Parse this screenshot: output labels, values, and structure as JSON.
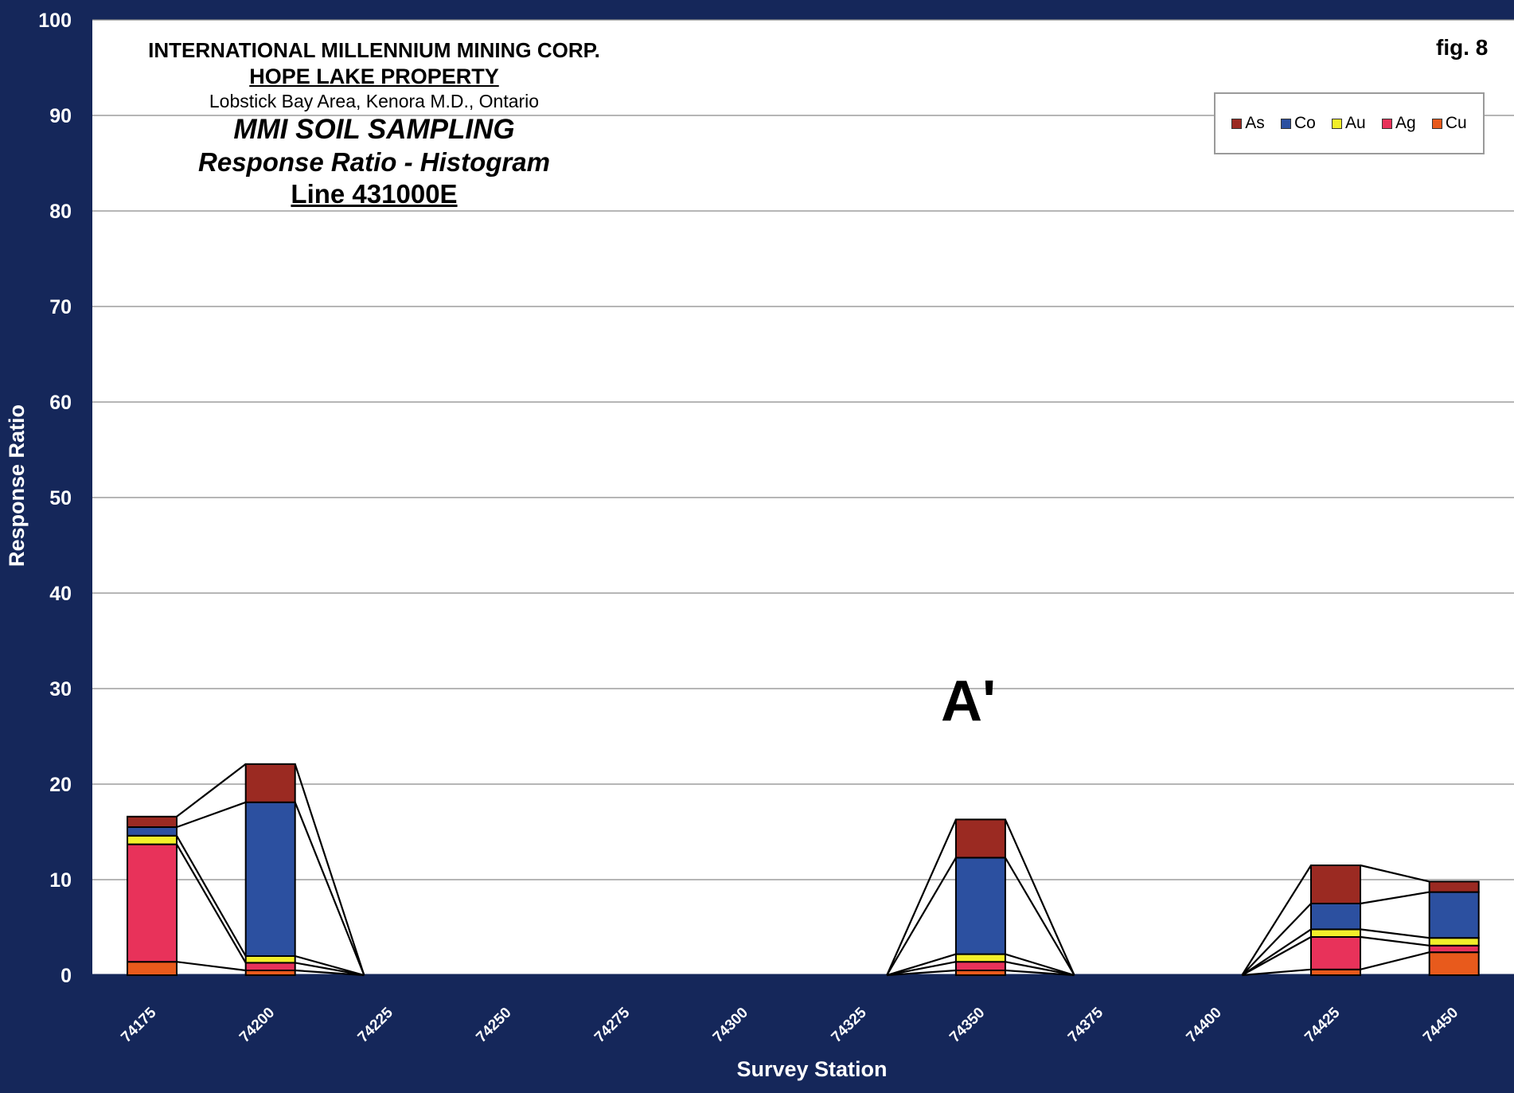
{
  "title_block": {
    "company": "INTERNATIONAL MILLENNIUM MINING CORP.",
    "property": "HOPE LAKE PROPERTY",
    "area": "Lobstick Bay Area, Kenora M.D., Ontario",
    "survey": "MMI SOIL SAMPLING",
    "chart_title": "Response Ratio - Histogram",
    "line": "Line 431000E"
  },
  "figure_label": "fig. 8",
  "annotation": "A'",
  "chart_data": {
    "type": "bar",
    "stacked": true,
    "categories": [
      "74175",
      "74200",
      "74225",
      "74250",
      "74275",
      "74300",
      "74325",
      "74350",
      "74375",
      "74400",
      "74425",
      "74450"
    ],
    "series": [
      {
        "name": "Cu",
        "color": "#e85a1c",
        "values": [
          1.4,
          0.5,
          0,
          0,
          0,
          0,
          0,
          0.5,
          0,
          0,
          0.6,
          2.4
        ]
      },
      {
        "name": "Ag",
        "color": "#e8325a",
        "values": [
          12.3,
          0.8,
          0,
          0,
          0,
          0,
          0,
          0.9,
          0,
          0,
          3.4,
          0.7
        ]
      },
      {
        "name": "Au",
        "color": "#f2ee2a",
        "values": [
          0.9,
          0.7,
          0,
          0,
          0,
          0,
          0,
          0.8,
          0,
          0,
          0.8,
          0.8
        ]
      },
      {
        "name": "Co",
        "color": "#2c50a0",
        "values": [
          0.9,
          16.1,
          0,
          0,
          0,
          0,
          0,
          10.1,
          0,
          0,
          2.7,
          4.8
        ]
      },
      {
        "name": "As",
        "color": "#9b2a22",
        "values": [
          1.1,
          4.0,
          0,
          0,
          0,
          0,
          0,
          4.0,
          0,
          0,
          4.0,
          1.1
        ]
      }
    ],
    "legend_order": [
      "As",
      "Co",
      "Au",
      "Ag",
      "Cu"
    ],
    "xlabel": "Survey Station",
    "ylabel": "Response Ratio",
    "ylim": [
      0,
      100
    ],
    "yticks": [
      0,
      10,
      20,
      30,
      40,
      50,
      60,
      70,
      80,
      90,
      100
    ],
    "grid": true,
    "legend_position": "top-right",
    "series_lines": true
  }
}
